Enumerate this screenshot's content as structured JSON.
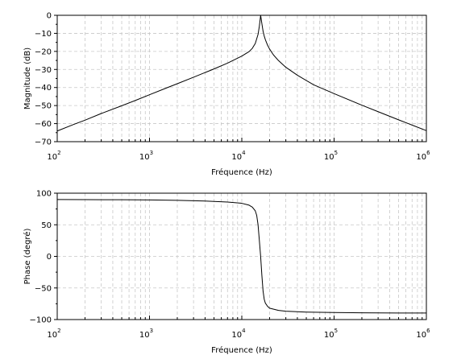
{
  "chart_data": [
    {
      "type": "line",
      "xlabel": "Fréquence (Hz)",
      "ylabel": "Magnitude (dB)",
      "x_scale": "log",
      "xlim": [
        100,
        1000000
      ],
      "ylim": [
        -70,
        0
      ],
      "grid": true,
      "x_tick_values": [
        100,
        1000,
        10000,
        100000,
        1000000
      ],
      "x_tick_labels": [
        {
          "base": "10",
          "exp": "2"
        },
        {
          "base": "10",
          "exp": "3"
        },
        {
          "base": "10",
          "exp": "4"
        },
        {
          "base": "10",
          "exp": "5"
        },
        {
          "base": "10",
          "exp": "6"
        }
      ],
      "y_ticks": [
        0,
        -10,
        -20,
        -30,
        -40,
        -50,
        -60,
        -70
      ],
      "y_tick_labels": [
        "0",
        "−10",
        "−20",
        "−30",
        "−40",
        "−50",
        "−60",
        "−70"
      ],
      "series": [
        {
          "x": [
            100,
            150,
            200,
            300,
            500,
            700,
            1000,
            1500,
            2000,
            3000,
            5000,
            7000,
            10000,
            12000,
            13000,
            14000,
            15000,
            15500,
            16000,
            16500,
            17000,
            17500,
            18000,
            19000,
            20000,
            22000,
            25000,
            30000,
            40000,
            60000,
            100000,
            200000,
            300000,
            500000,
            700000,
            1000000
          ],
          "y": [
            -64.1,
            -60.5,
            -58.1,
            -54.4,
            -50.1,
            -47.2,
            -44.0,
            -40.4,
            -37.9,
            -34.3,
            -29.7,
            -26.5,
            -22.6,
            -20.1,
            -18.3,
            -15.6,
            -10.6,
            -6.0,
            0.0,
            -4.6,
            -8.8,
            -11.5,
            -13.5,
            -16.5,
            -18.7,
            -21.9,
            -25.1,
            -28.8,
            -33.2,
            -38.5,
            -43.4,
            -49.8,
            -53.4,
            -57.9,
            -60.8,
            -63.9
          ]
        }
      ]
    },
    {
      "type": "line",
      "xlabel": "Fréquence (Hz)",
      "ylabel": "Phase (degré)",
      "x_scale": "log",
      "xlim": [
        100,
        1000000
      ],
      "ylim": [
        -100,
        100
      ],
      "grid": true,
      "x_tick_values": [
        100,
        1000,
        10000,
        100000,
        1000000
      ],
      "x_tick_labels": [
        {
          "base": "10",
          "exp": "2"
        },
        {
          "base": "10",
          "exp": "3"
        },
        {
          "base": "10",
          "exp": "4"
        },
        {
          "base": "10",
          "exp": "5"
        },
        {
          "base": "10",
          "exp": "6"
        }
      ],
      "y_ticks": [
        100,
        50,
        0,
        -50,
        -100
      ],
      "y_tick_labels": [
        "100",
        "50",
        "0",
        "−50",
        "−100"
      ],
      "series": [
        {
          "x": [
            100,
            200,
            500,
            1000,
            2000,
            4000,
            7000,
            10000,
            12000,
            13000,
            14000,
            14500,
            15000,
            15500,
            16000,
            16500,
            17000,
            17500,
            18000,
            19000,
            20000,
            25000,
            30000,
            50000,
            100000,
            200000,
            500000,
            1000000
          ],
          "y": [
            90.0,
            89.8,
            89.6,
            89.3,
            88.7,
            87.6,
            86.0,
            84.0,
            81.0,
            78.0,
            72.0,
            65.0,
            50.0,
            25.0,
            0.0,
            -30.0,
            -55.0,
            -68.0,
            -74.0,
            -79.0,
            -82.0,
            -85.5,
            -86.8,
            -88.2,
            -88.9,
            -89.3,
            -89.6,
            -89.7
          ]
        }
      ]
    }
  ]
}
